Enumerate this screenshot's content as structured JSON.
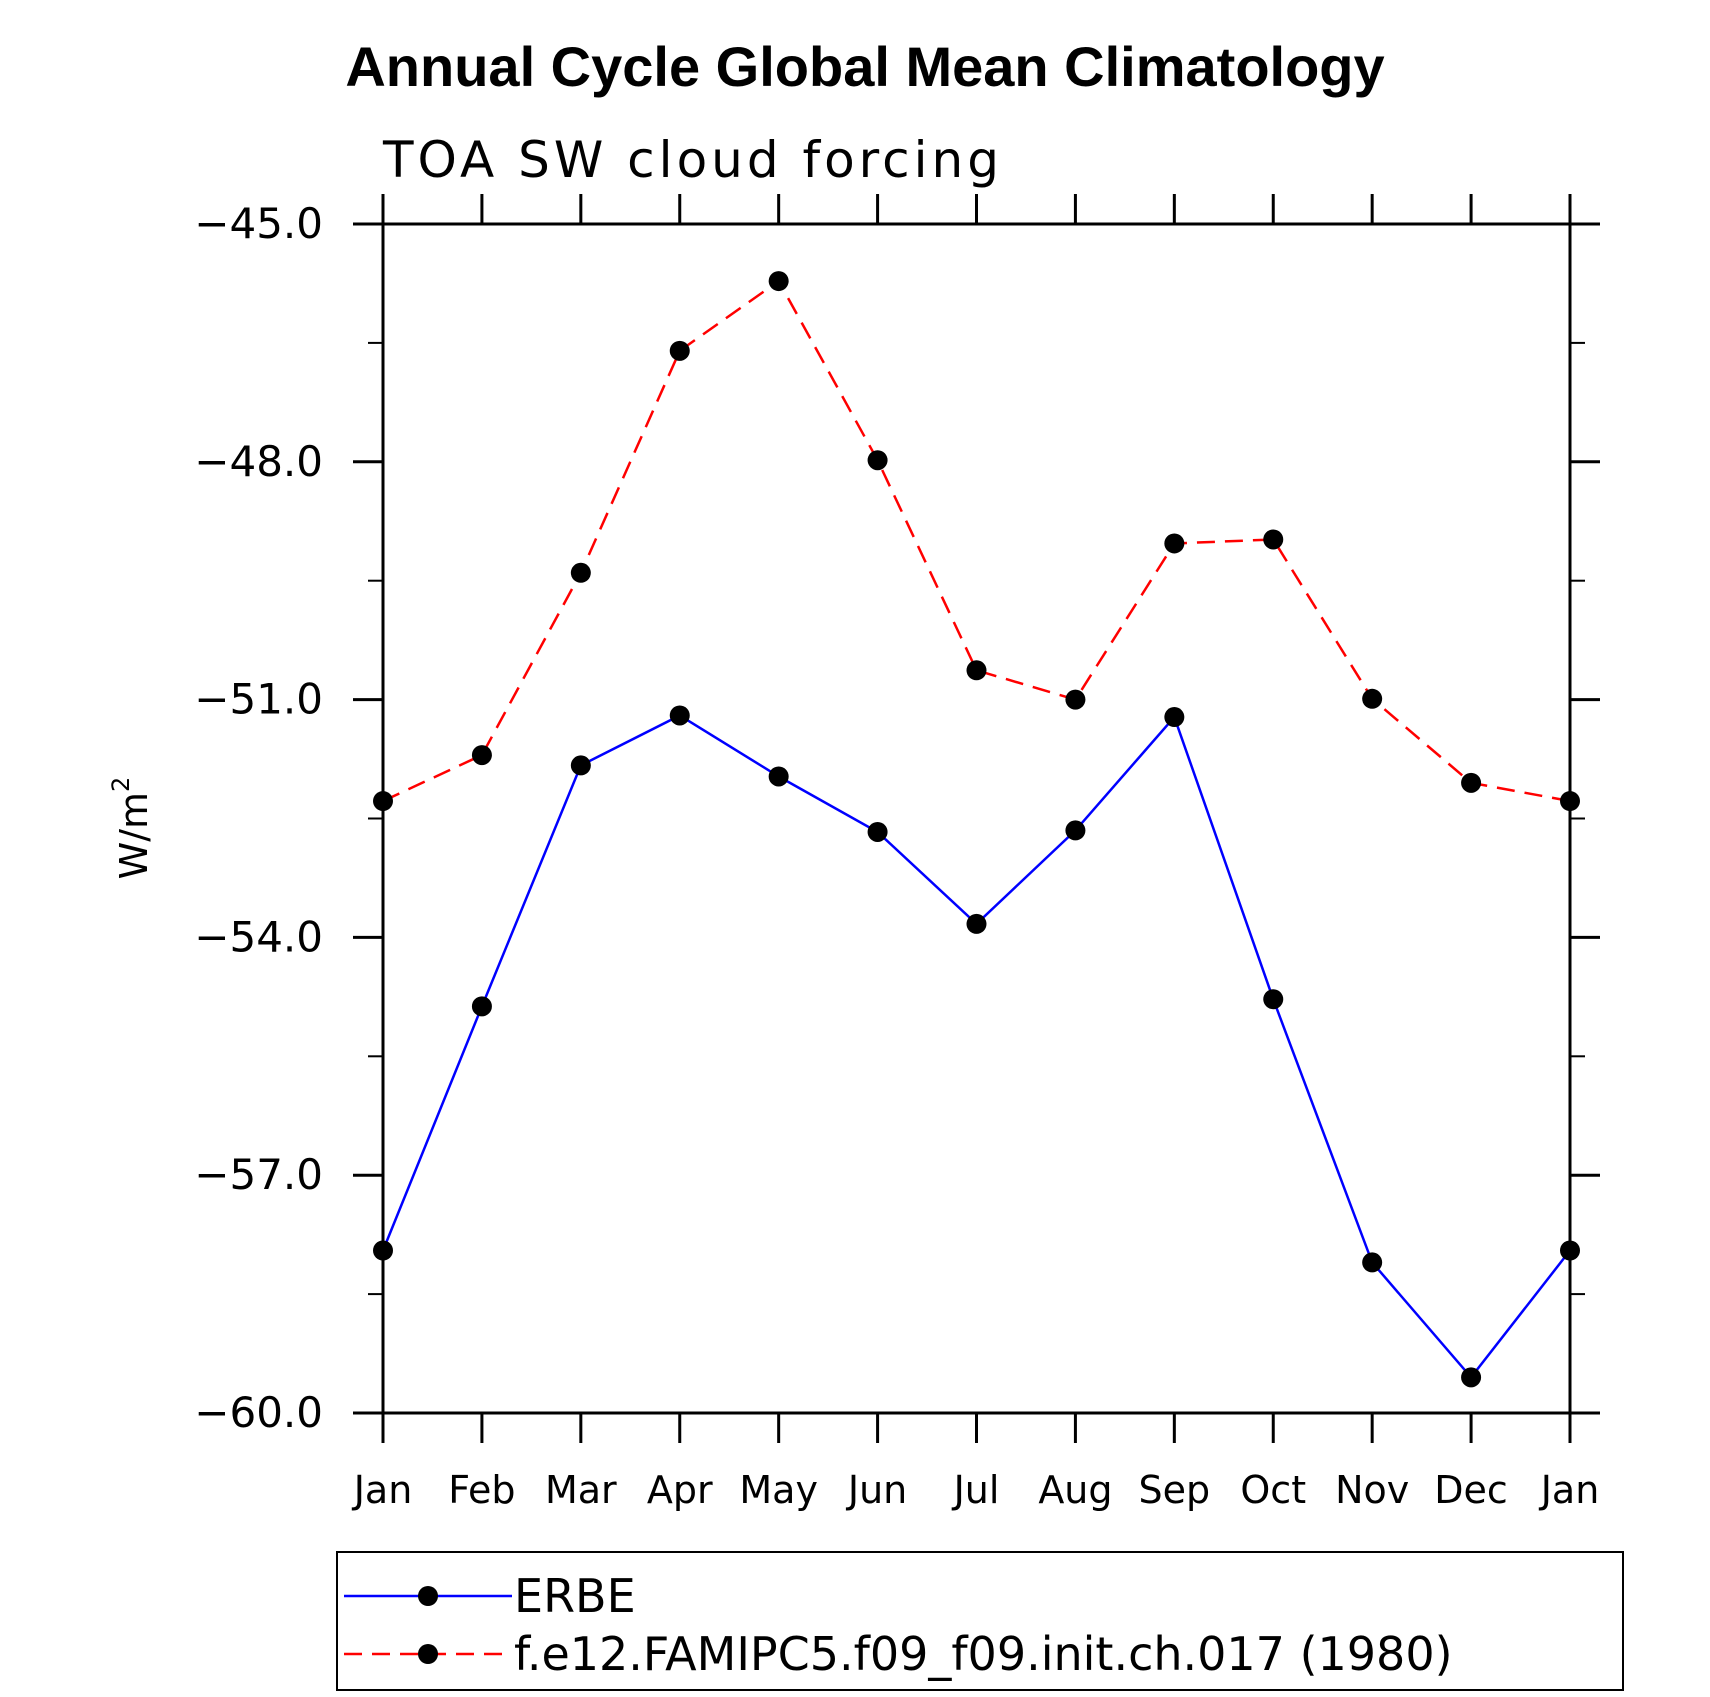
{
  "chart_data": {
    "type": "line",
    "title": "Annual Cycle Global Mean Climatology",
    "subtitle": "TOA SW cloud forcing",
    "ylabel_base": "W/m",
    "ylabel_sup": "2",
    "categories": [
      "Jan",
      "Feb",
      "Mar",
      "Apr",
      "May",
      "Jun",
      "Jul",
      "Aug",
      "Sep",
      "Oct",
      "Nov",
      "Dec",
      "Jan"
    ],
    "ylim": [
      -60.0,
      -45.0
    ],
    "yticks": [
      -45.0,
      -48.0,
      -51.0,
      -54.0,
      -57.0,
      -60.0
    ],
    "ytick_labels": [
      "−45.0",
      "−48.0",
      "−51.0",
      "−54.0",
      "−57.0",
      "−60.0"
    ],
    "legend_position": "bottom",
    "series": [
      {
        "name": "ERBE",
        "color": "#0000ff",
        "dash": "solid",
        "values": [
          -57.95,
          -54.87,
          -51.83,
          -51.2,
          -51.97,
          -52.67,
          -53.83,
          -52.65,
          -51.22,
          -54.78,
          -58.1,
          -59.55,
          -57.95
        ]
      },
      {
        "name": "f.e12.FAMIPC5.f09_f09.init.ch.017 (1980)",
        "color": "#ff0000",
        "dash": "dashed",
        "values": [
          -52.28,
          -51.7,
          -49.4,
          -46.6,
          -45.72,
          -47.98,
          -50.63,
          -51.0,
          -49.03,
          -48.98,
          -50.99,
          -52.05,
          -52.28
        ]
      }
    ]
  }
}
